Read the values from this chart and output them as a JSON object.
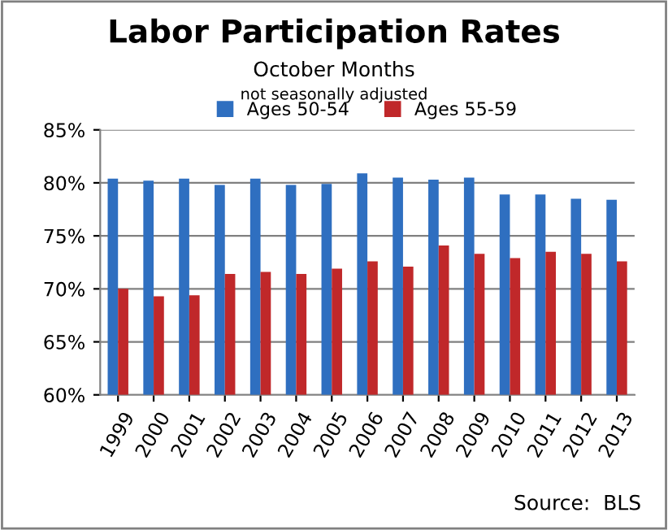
{
  "chart_data": {
    "type": "bar",
    "title": "Labor Participation Rates",
    "subtitle": "October Months",
    "annotations": [
      "not seasonally adjusted",
      "Source:  BLS"
    ],
    "categories": [
      "1999",
      "2000",
      "2001",
      "2002",
      "2003",
      "2004",
      "2005",
      "2006",
      "2007",
      "2008",
      "2009",
      "2010",
      "2011",
      "2012",
      "2013"
    ],
    "series": [
      {
        "name": "Ages 50-54",
        "color": "#2f6fc0",
        "values": [
          80.4,
          80.2,
          80.4,
          79.8,
          80.4,
          79.8,
          79.9,
          80.9,
          80.5,
          80.3,
          80.5,
          78.9,
          78.9,
          78.5,
          78.4
        ]
      },
      {
        "name": "Ages 55-59",
        "color": "#c0282a",
        "values": [
          70.0,
          69.3,
          69.4,
          71.4,
          71.6,
          71.4,
          71.9,
          72.6,
          72.1,
          74.1,
          73.3,
          72.9,
          73.5,
          73.3,
          72.6
        ]
      }
    ],
    "ylim": [
      60,
      85
    ],
    "yticks": [
      {
        "value": 60,
        "label": "60%"
      },
      {
        "value": 65,
        "label": "65%"
      },
      {
        "value": 70,
        "label": "70%"
      },
      {
        "value": 75,
        "label": "75%"
      },
      {
        "value": 80,
        "label": "80%"
      },
      {
        "value": 85,
        "label": "85%"
      }
    ],
    "grid": "y",
    "legend": "top"
  }
}
